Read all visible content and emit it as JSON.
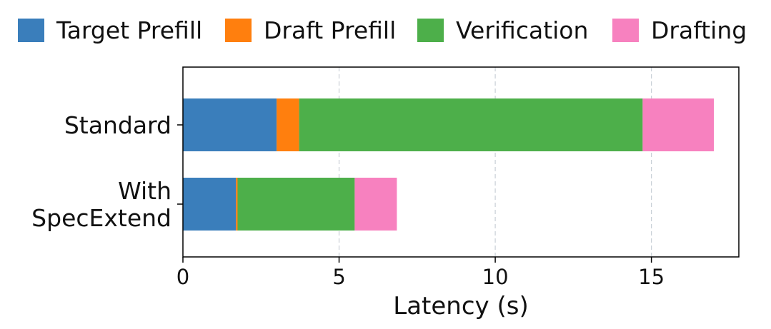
{
  "chart_data": {
    "type": "bar",
    "orientation": "horizontal",
    "stacked": true,
    "title": "",
    "xlabel": "Latency (s)",
    "ylabel": "",
    "xlim": [
      0,
      17.8
    ],
    "xticks": [
      0,
      5,
      10,
      15
    ],
    "grid": "vertical dashed",
    "legend_position": "top",
    "categories": [
      [
        "Standard"
      ],
      [
        "With",
        "SpecExtend"
      ]
    ],
    "series": [
      {
        "name": "Target Prefill",
        "color": "#3a7ebb",
        "values": [
          3.0,
          1.7
        ]
      },
      {
        "name": "Draft Prefill",
        "color": "#ff7f0e",
        "values": [
          0.72,
          0.05
        ]
      },
      {
        "name": "Verification",
        "color": "#4daf4a",
        "values": [
          11.0,
          3.75
        ]
      },
      {
        "name": "Drafting",
        "color": "#f781bf",
        "values": [
          2.28,
          1.35
        ]
      }
    ]
  }
}
